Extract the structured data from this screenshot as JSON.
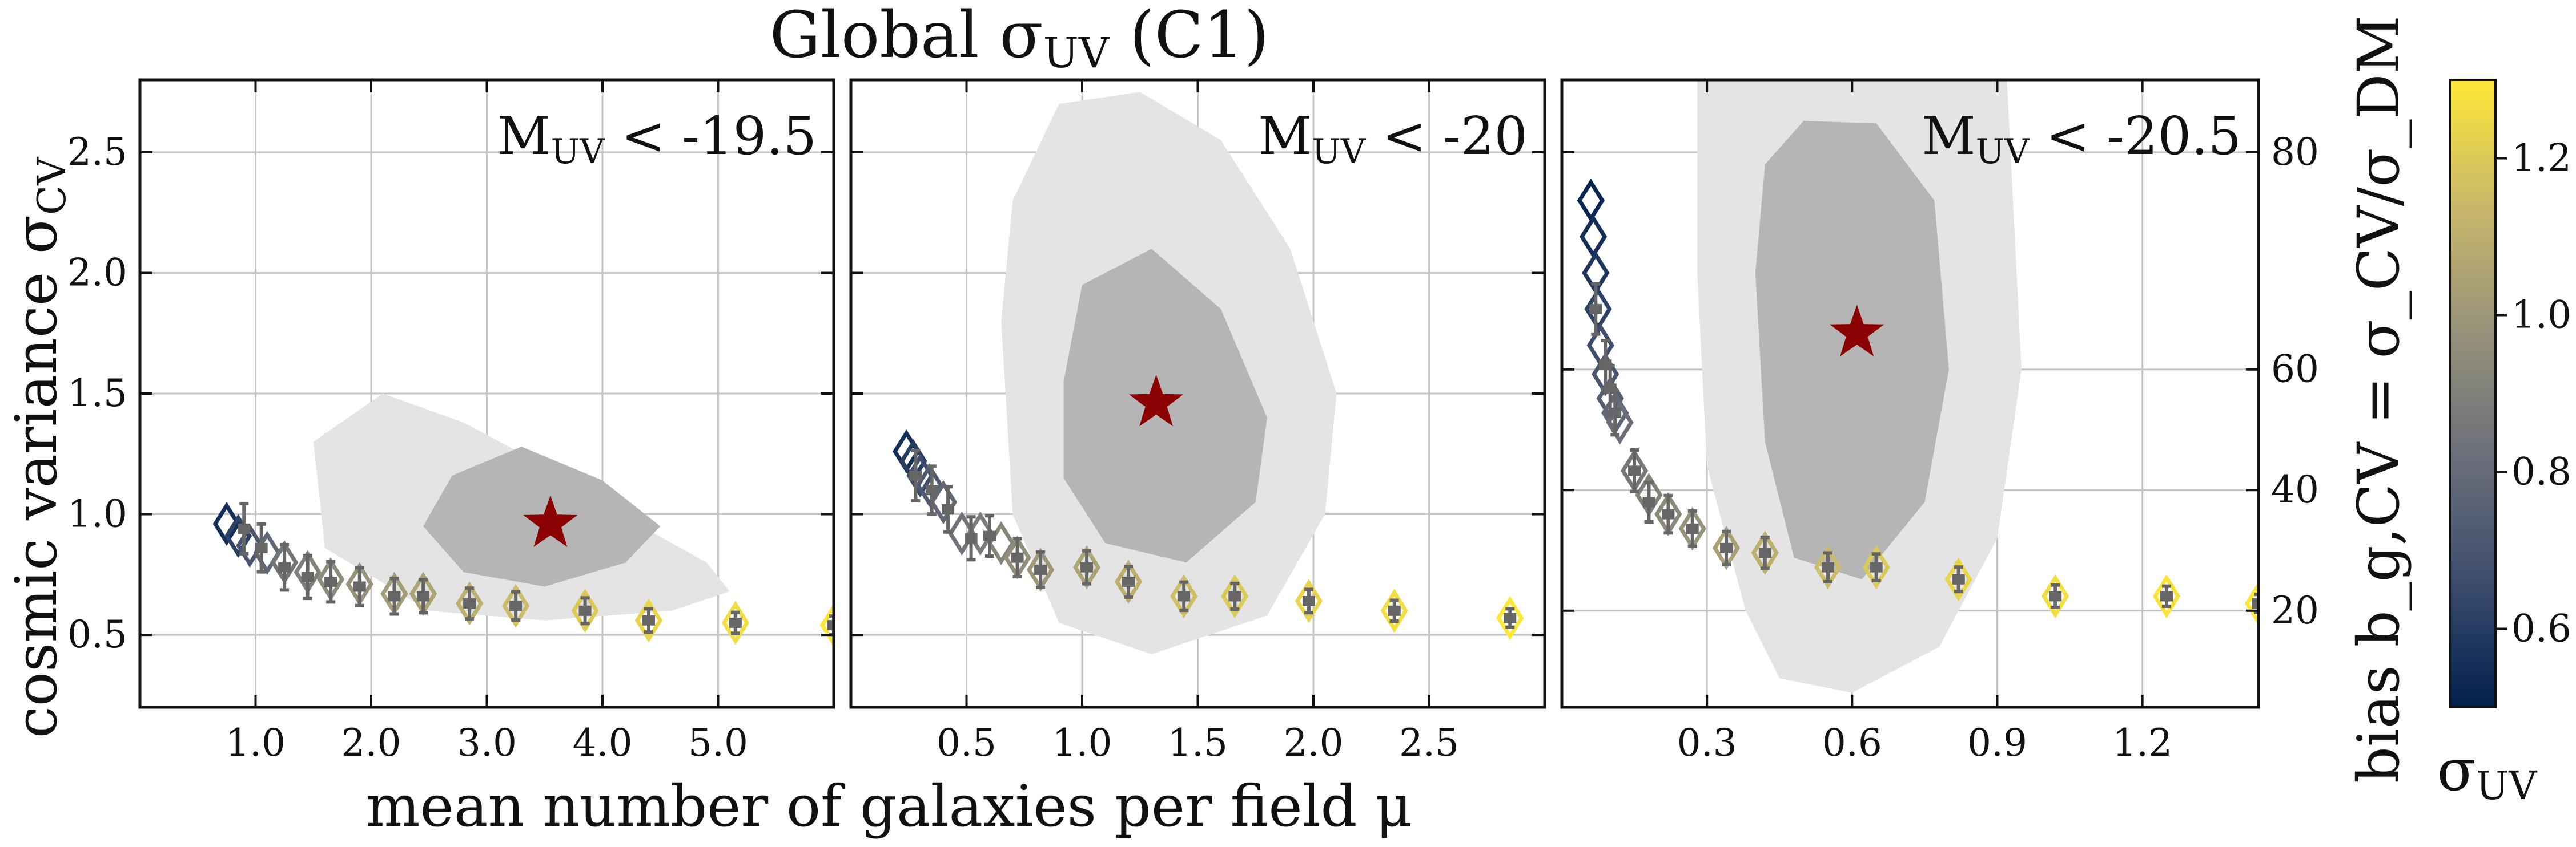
{
  "figure": {
    "title": "Global σ",
    "title_sub": "UV",
    "title_suffix": " (C1)",
    "xlabel": "mean number of galaxies per field μ",
    "ylabel_left_main": "cosmic variance σ",
    "ylabel_left_sub": "CV",
    "ylabel_right": "bias b_g,CV = σ_CV/σ_DM",
    "colorbar_label_main": "σ",
    "colorbar_label_sub": "UV"
  },
  "colorbar": {
    "range": [
      0.5,
      1.3
    ],
    "ticks": [
      "0.6",
      "0.8",
      "1.0",
      "1.2"
    ],
    "tick_values": [
      0.6,
      0.8,
      1.0,
      1.2
    ],
    "colors": [
      "#00204d",
      "#3d4d6d",
      "#6b6f7a",
      "#97927a",
      "#c9b86a",
      "#fde737"
    ]
  },
  "chart_data": [
    {
      "type": "scatter",
      "panel_label_main": "M",
      "panel_label_sub": "UV",
      "panel_label_rest": " < -19.5",
      "xlim": [
        0.0,
        6.0
      ],
      "ylim": [
        0.2,
        2.8
      ],
      "x_ticks": [
        "1.0",
        "2.0",
        "3.0",
        "4.0",
        "5.0"
      ],
      "x_tick_values": [
        1.0,
        2.0,
        3.0,
        4.0,
        5.0
      ],
      "y_ticks": [
        "0.5",
        "1.0",
        "1.5",
        "2.0",
        "2.5"
      ],
      "y_tick_values": [
        0.5,
        1.0,
        1.5,
        2.0,
        2.5
      ],
      "best_fit_star": {
        "x": 3.55,
        "y": 0.96
      },
      "contour_outer": [
        [
          1.5,
          1.3
        ],
        [
          2.1,
          1.5
        ],
        [
          2.8,
          1.38
        ],
        [
          3.5,
          1.2
        ],
        [
          4.3,
          0.96
        ],
        [
          4.9,
          0.8
        ],
        [
          5.1,
          0.68
        ],
        [
          4.6,
          0.6
        ],
        [
          3.5,
          0.56
        ],
        [
          2.5,
          0.6
        ],
        [
          1.6,
          0.86
        ]
      ],
      "contour_inner": [
        [
          2.7,
          1.16
        ],
        [
          3.3,
          1.28
        ],
        [
          4.0,
          1.14
        ],
        [
          4.5,
          0.95
        ],
        [
          4.2,
          0.8
        ],
        [
          3.5,
          0.7
        ],
        [
          2.8,
          0.76
        ],
        [
          2.45,
          0.95
        ]
      ],
      "sigma_cv": {
        "x": [
          0.9,
          1.05,
          1.25,
          1.45,
          1.65,
          1.9,
          2.2,
          2.45,
          2.85,
          3.25,
          3.85,
          4.4,
          5.15,
          6.0
        ],
        "y": [
          0.94,
          0.86,
          0.78,
          0.74,
          0.72,
          0.7,
          0.66,
          0.66,
          0.63,
          0.62,
          0.6,
          0.56,
          0.55,
          0.54
        ]
      },
      "bias_points": {
        "x": [
          0.75,
          0.85,
          0.95,
          1.1,
          1.25,
          1.45,
          1.65,
          1.9,
          2.2,
          2.45,
          2.85,
          3.25,
          3.85,
          4.4,
          5.15,
          6.0
        ],
        "y": [
          0.96,
          0.91,
          0.87,
          0.84,
          0.8,
          0.76,
          0.73,
          0.71,
          0.67,
          0.67,
          0.63,
          0.62,
          0.6,
          0.56,
          0.55,
          0.54
        ],
        "sigma_uv": [
          0.55,
          0.62,
          0.7,
          0.78,
          0.85,
          0.9,
          0.95,
          0.98,
          1.02,
          1.05,
          1.1,
          1.15,
          1.2,
          1.24,
          1.27,
          1.3
        ]
      }
    },
    {
      "type": "scatter",
      "panel_label_main": "M",
      "panel_label_sub": "UV",
      "panel_label_rest": " < -20",
      "xlim": [
        0.0,
        3.0
      ],
      "ylim": [
        0.2,
        2.8
      ],
      "x_ticks": [
        "0.5",
        "1.0",
        "1.5",
        "2.0",
        "2.5"
      ],
      "x_tick_values": [
        0.5,
        1.0,
        1.5,
        2.0,
        2.5
      ],
      "y_ticks": [],
      "y_tick_values": [
        0.5,
        1.0,
        1.5,
        2.0,
        2.5
      ],
      "best_fit_star": {
        "x": 1.32,
        "y": 1.46
      },
      "contour_outer": [
        [
          0.7,
          2.3
        ],
        [
          0.9,
          2.7
        ],
        [
          1.25,
          2.75
        ],
        [
          1.6,
          2.55
        ],
        [
          1.9,
          2.1
        ],
        [
          2.1,
          1.5
        ],
        [
          2.05,
          1.0
        ],
        [
          1.8,
          0.58
        ],
        [
          1.3,
          0.42
        ],
        [
          0.9,
          0.55
        ],
        [
          0.7,
          1.0
        ],
        [
          0.65,
          1.8
        ]
      ],
      "contour_inner": [
        [
          0.92,
          1.55
        ],
        [
          1.0,
          1.95
        ],
        [
          1.3,
          2.1
        ],
        [
          1.6,
          1.85
        ],
        [
          1.8,
          1.4
        ],
        [
          1.75,
          1.05
        ],
        [
          1.45,
          0.8
        ],
        [
          1.1,
          0.88
        ],
        [
          0.92,
          1.15
        ]
      ],
      "sigma_cv": {
        "x": [
          0.28,
          0.35,
          0.42,
          0.52,
          0.6,
          0.72,
          0.82,
          1.02,
          1.2,
          1.44,
          1.66,
          1.98,
          2.35,
          2.85
        ],
        "y": [
          1.16,
          1.1,
          1.02,
          0.9,
          0.91,
          0.82,
          0.77,
          0.78,
          0.72,
          0.66,
          0.66,
          0.64,
          0.6,
          0.57
        ]
      },
      "bias_points": {
        "x": [
          0.24,
          0.27,
          0.3,
          0.34,
          0.4,
          0.48,
          0.56,
          0.65,
          0.72,
          0.82,
          1.02,
          1.2,
          1.44,
          1.66,
          1.98,
          2.35,
          2.85
        ],
        "y": [
          1.26,
          1.22,
          1.16,
          1.12,
          1.05,
          0.92,
          0.92,
          0.88,
          0.82,
          0.77,
          0.78,
          0.72,
          0.66,
          0.66,
          0.64,
          0.6,
          0.57
        ],
        "sigma_uv": [
          0.55,
          0.6,
          0.66,
          0.72,
          0.78,
          0.84,
          0.88,
          0.92,
          0.96,
          1.0,
          1.05,
          1.1,
          1.16,
          1.2,
          1.24,
          1.27,
          1.3
        ]
      }
    },
    {
      "type": "scatter",
      "panel_label_main": "M",
      "panel_label_sub": "UV",
      "panel_label_rest": " < -20.5",
      "xlim": [
        0.0,
        1.44
      ],
      "ylim": [
        0.2,
        2.8
      ],
      "x_ticks": [
        "0.3",
        "0.6",
        "0.9",
        "1.2"
      ],
      "x_tick_values": [
        0.3,
        0.6,
        0.9,
        1.2
      ],
      "y_ticks": [
        "20",
        "40",
        "60",
        "80"
      ],
      "y_tick_values": [
        0.6,
        1.1,
        1.6,
        2.5
      ],
      "best_fit_star": {
        "x": 0.61,
        "y": 1.75
      },
      "contour_outer": [
        [
          0.28,
          2.8
        ],
        [
          0.92,
          2.8
        ],
        [
          0.93,
          2.4
        ],
        [
          0.95,
          1.6
        ],
        [
          0.9,
          0.9
        ],
        [
          0.78,
          0.45
        ],
        [
          0.6,
          0.26
        ],
        [
          0.45,
          0.32
        ],
        [
          0.38,
          0.6
        ],
        [
          0.3,
          1.2
        ],
        [
          0.28,
          2.0
        ]
      ],
      "contour_inner": [
        [
          0.42,
          2.45
        ],
        [
          0.5,
          2.63
        ],
        [
          0.65,
          2.62
        ],
        [
          0.77,
          2.3
        ],
        [
          0.8,
          1.6
        ],
        [
          0.75,
          1.05
        ],
        [
          0.62,
          0.73
        ],
        [
          0.48,
          0.82
        ],
        [
          0.42,
          1.3
        ],
        [
          0.4,
          2.0
        ]
      ],
      "sigma_cv": {
        "x": [
          0.07,
          0.09,
          0.1,
          0.11,
          0.15,
          0.18,
          0.22,
          0.27,
          0.34,
          0.42,
          0.55,
          0.65,
          0.82,
          1.02,
          1.25,
          1.44
        ],
        "y": [
          1.85,
          1.62,
          1.52,
          1.42,
          1.18,
          1.05,
          1.0,
          0.94,
          0.86,
          0.84,
          0.78,
          0.78,
          0.73,
          0.66,
          0.66,
          0.63
        ]
      },
      "bias_points": {
        "x": [
          0.06,
          0.065,
          0.07,
          0.075,
          0.08,
          0.09,
          0.1,
          0.11,
          0.12,
          0.15,
          0.18,
          0.22,
          0.27,
          0.34,
          0.42,
          0.55,
          0.65,
          0.82,
          1.02,
          1.25,
          1.44
        ],
        "y": [
          2.3,
          2.15,
          2.0,
          1.85,
          1.7,
          1.58,
          1.48,
          1.42,
          1.38,
          1.18,
          1.08,
          1.0,
          0.94,
          0.86,
          0.84,
          0.78,
          0.78,
          0.73,
          0.66,
          0.66,
          0.63
        ],
        "sigma_uv": [
          0.52,
          0.55,
          0.58,
          0.62,
          0.66,
          0.7,
          0.74,
          0.78,
          0.82,
          0.86,
          0.9,
          0.94,
          0.98,
          1.04,
          1.1,
          1.15,
          1.2,
          1.24,
          1.27,
          1.29,
          1.3
        ]
      }
    }
  ]
}
